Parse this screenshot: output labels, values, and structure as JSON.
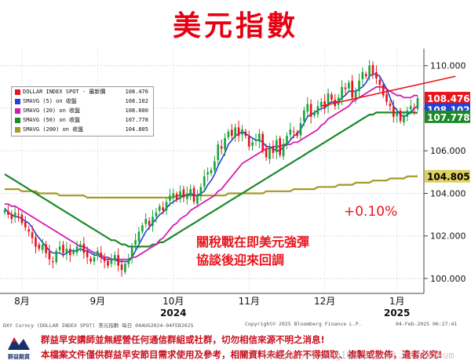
{
  "page": {
    "title": "美元指數",
    "disclaimer_1": "群益早安講師並無經營任何通信群組或社群，切勿相信來源不明之消息!",
    "disclaimer_2": "本檔案文件僅供群益早安節目需求使用及參考，相關資料未經允許不得擷取、複製或散佈，違者必究!",
    "watermark": "https://eting168.pixnet.net/album",
    "logo_text": "群益期貨",
    "footer_left": "DXY Curncy (DOLLAR INDEX SPOT) 美元指數  每日 04AUG2024-04FEB2025",
    "footer_center": "Copyright© 2025 Bloomberg Finance L.P.",
    "footer_right": "04-Feb-2025 06:27:41"
  },
  "legend": [
    {
      "label": "DOLLAR INDEX SPOT - 最新價",
      "value": "108.476",
      "color": "#e8141c"
    },
    {
      "label": "SMAVG (5)  on 收盤",
      "value": "108.102",
      "color": "#2440d8"
    },
    {
      "label": "SMAVG (20)  on 收盤",
      "value": "108.600",
      "color": "#d61bb0"
    },
    {
      "label": "SMAVG (50)  on 收盤",
      "value": "107.778",
      "color": "#1d8a2a"
    },
    {
      "label": "SMAVG (200)  on 收盤",
      "value": "104.805",
      "color": "#a39a22"
    }
  ],
  "chart_data": {
    "type": "candlestick",
    "y_ticks": [
      "110.000",
      "108.000",
      "106.000",
      "104.000",
      "102.000",
      "100.000"
    ],
    "ylim": [
      99.3,
      110.8
    ],
    "x_labels": [
      "8月",
      "9月",
      "10月",
      "11月",
      "12月",
      "1月"
    ],
    "year_labels": [
      "2024",
      "2025"
    ],
    "last_price_label": "108.476",
    "price_tags": [
      {
        "value": "108.476",
        "y": 108.476,
        "color": "#e8141c",
        "text_color": "#ffffff"
      },
      {
        "value": "108.102",
        "y": 107.95,
        "color": "#2440d8",
        "text_color": "#ffffff"
      },
      {
        "value": "107.778",
        "y": 107.6,
        "color": "#1d8a2a",
        "text_color": "#ffffff"
      },
      {
        "value": "104.805",
        "y": 104.805,
        "color": "#e0d060",
        "text_color": "#000000"
      }
    ],
    "annotation_pct": "+0.10%",
    "annotation_text_1": "關稅戰在即美元強彈",
    "annotation_text_2": "協談後迎來回調",
    "trendline": {
      "start": {
        "x": 92,
        "y": 108.1
      },
      "end": {
        "x": 131,
        "y": 109.5
      }
    },
    "series": {
      "close": [
        103.2,
        103.0,
        102.8,
        103.1,
        103.0,
        102.6,
        102.4,
        102.2,
        101.9,
        101.5,
        101.4,
        101.6,
        101.2,
        100.9,
        100.8,
        101.3,
        101.5,
        101.2,
        101.4,
        101.1,
        101.3,
        101.5,
        101.6,
        101.2,
        101.0,
        100.8,
        101.0,
        101.3,
        101.0,
        100.8,
        100.6,
        100.9,
        101.1,
        100.6,
        100.4,
        100.7,
        100.9,
        101.5,
        101.8,
        102.2,
        102.5,
        102.8,
        102.5,
        102.9,
        103.1,
        103.4,
        103.2,
        103.6,
        103.9,
        104.0,
        103.7,
        104.1,
        103.8,
        104.0,
        104.2,
        103.6,
        103.9,
        104.3,
        104.8,
        105.0,
        105.1,
        105.5,
        106.3,
        106.1,
        106.6,
        106.9,
        106.7,
        107.1,
        106.7,
        107.0,
        106.7,
        106.2,
        106.4,
        106.5,
        106.8,
        106.0,
        105.7,
        106.2,
        105.9,
        106.5,
        105.8,
        106.3,
        106.7,
        107.0,
        106.9,
        106.7,
        107.3,
        107.9,
        108.2,
        107.6,
        107.8,
        108.1,
        108.3,
        108.0,
        108.7,
        108.4,
        108.1,
        108.5,
        109.0,
        108.9,
        109.2,
        108.5,
        108.8,
        109.3,
        109.7,
        109.5,
        110.0,
        109.6,
        109.4,
        109.1,
        108.6,
        108.3,
        108.1,
        107.6,
        107.8,
        107.4,
        107.6,
        107.9,
        108.1,
        108.0,
        108.476
      ],
      "sma5": [
        103.3,
        103.1,
        103.0,
        102.9,
        102.9,
        102.8,
        102.7,
        102.6,
        102.4,
        102.1,
        101.9,
        101.7,
        101.5,
        101.3,
        101.2,
        101.2,
        101.2,
        101.1,
        101.2,
        101.3,
        101.3,
        101.3,
        101.4,
        101.3,
        101.3,
        101.2,
        101.1,
        101.1,
        101.0,
        100.9,
        100.9,
        100.9,
        100.9,
        100.8,
        100.8,
        100.8,
        100.8,
        101.0,
        101.3,
        101.6,
        101.9,
        102.2,
        102.4,
        102.6,
        102.8,
        103.0,
        103.1,
        103.3,
        103.5,
        103.6,
        103.7,
        103.8,
        103.9,
        103.9,
        104.0,
        103.9,
        103.9,
        104.0,
        104.1,
        104.4,
        104.6,
        104.9,
        105.3,
        105.6,
        105.9,
        106.3,
        106.5,
        106.7,
        106.8,
        106.9,
        106.8,
        106.7,
        106.6,
        106.5,
        106.5,
        106.4,
        106.2,
        106.2,
        106.1,
        106.0,
        106.0,
        106.2,
        106.3,
        106.5,
        106.7,
        106.8,
        107.0,
        107.3,
        107.6,
        107.7,
        107.8,
        107.9,
        108.0,
        108.0,
        108.2,
        108.3,
        108.3,
        108.3,
        108.5,
        108.6,
        108.8,
        108.8,
        108.8,
        108.9,
        109.0,
        109.2,
        109.5,
        109.6,
        109.6,
        109.5,
        109.2,
        108.9,
        108.5,
        108.1,
        107.9,
        107.7,
        107.6,
        107.7,
        107.8,
        108.0,
        108.102
      ],
      "sma20": [
        103.5,
        103.5,
        103.4,
        103.4,
        103.3,
        103.2,
        103.1,
        103.0,
        102.9,
        102.8,
        102.7,
        102.6,
        102.5,
        102.4,
        102.3,
        102.2,
        102.1,
        102.0,
        101.9,
        101.8,
        101.7,
        101.6,
        101.5,
        101.5,
        101.4,
        101.3,
        101.2,
        101.2,
        101.1,
        101.0,
        101.0,
        100.9,
        100.9,
        100.9,
        100.9,
        100.9,
        100.9,
        101.0,
        101.0,
        101.1,
        101.2,
        101.3,
        101.4,
        101.5,
        101.6,
        101.8,
        101.9,
        102.1,
        102.3,
        102.5,
        102.6,
        102.8,
        102.9,
        103.0,
        103.2,
        103.3,
        103.4,
        103.5,
        103.6,
        103.7,
        103.8,
        103.9,
        104.1,
        104.2,
        104.4,
        104.6,
        104.8,
        105.0,
        105.2,
        105.4,
        105.5,
        105.6,
        105.7,
        105.8,
        105.9,
        106.0,
        106.1,
        106.1,
        106.2,
        106.2,
        106.2,
        106.3,
        106.3,
        106.3,
        106.4,
        106.4,
        106.5,
        106.6,
        106.7,
        106.8,
        106.9,
        107.0,
        107.2,
        107.3,
        107.5,
        107.6,
        107.7,
        107.8,
        107.9,
        108.0,
        108.1,
        108.3,
        108.4,
        108.5,
        108.6,
        108.7,
        108.8,
        108.9,
        109.0,
        109.0,
        109.0,
        108.9,
        108.8,
        108.7,
        108.6,
        108.6,
        108.5,
        108.5,
        108.5,
        108.6,
        108.6
      ],
      "sma50": [
        104.9,
        104.8,
        104.7,
        104.6,
        104.5,
        104.4,
        104.3,
        104.2,
        104.1,
        104.0,
        103.9,
        103.8,
        103.7,
        103.6,
        103.5,
        103.4,
        103.3,
        103.2,
        103.1,
        103.0,
        102.9,
        102.8,
        102.7,
        102.6,
        102.5,
        102.4,
        102.3,
        102.2,
        102.1,
        102.0,
        101.9,
        101.8,
        101.8,
        101.7,
        101.6,
        101.6,
        101.5,
        101.5,
        101.5,
        101.5,
        101.5,
        101.5,
        101.5,
        101.6,
        101.6,
        101.7,
        101.7,
        101.8,
        101.9,
        102.0,
        102.1,
        102.2,
        102.3,
        102.4,
        102.5,
        102.6,
        102.7,
        102.8,
        102.9,
        103.0,
        103.1,
        103.2,
        103.3,
        103.4,
        103.5,
        103.6,
        103.7,
        103.8,
        103.9,
        104.0,
        104.1,
        104.2,
        104.3,
        104.4,
        104.5,
        104.6,
        104.7,
        104.8,
        104.9,
        105.0,
        105.1,
        105.2,
        105.3,
        105.4,
        105.5,
        105.6,
        105.7,
        105.8,
        105.9,
        106.0,
        106.1,
        106.2,
        106.3,
        106.4,
        106.5,
        106.6,
        106.7,
        106.8,
        106.9,
        107.0,
        107.1,
        107.2,
        107.3,
        107.4,
        107.5,
        107.6,
        107.7,
        107.7,
        107.8,
        107.8,
        107.8,
        107.8,
        107.8,
        107.8,
        107.8,
        107.8,
        107.8,
        107.8,
        107.8,
        107.8,
        107.778
      ],
      "sma200": [
        104.2,
        104.2,
        104.2,
        104.2,
        104.2,
        104.1,
        104.1,
        104.1,
        104.1,
        104.1,
        104.0,
        104.0,
        104.0,
        104.0,
        104.0,
        104.0,
        103.9,
        103.9,
        103.9,
        103.9,
        103.9,
        103.9,
        103.9,
        103.9,
        103.8,
        103.8,
        103.8,
        103.8,
        103.8,
        103.8,
        103.8,
        103.8,
        103.8,
        103.8,
        103.8,
        103.8,
        103.8,
        103.8,
        103.8,
        103.8,
        103.8,
        103.8,
        103.8,
        103.8,
        103.8,
        103.8,
        103.8,
        103.8,
        103.8,
        103.8,
        103.9,
        103.9,
        103.9,
        103.9,
        103.9,
        103.9,
        103.9,
        103.9,
        103.9,
        103.9,
        103.9,
        103.9,
        103.9,
        103.9,
        103.9,
        104.0,
        104.0,
        104.0,
        104.0,
        104.0,
        104.0,
        104.0,
        104.0,
        104.0,
        104.0,
        104.0,
        104.1,
        104.1,
        104.1,
        104.1,
        104.1,
        104.1,
        104.1,
        104.1,
        104.2,
        104.2,
        104.2,
        104.2,
        104.2,
        104.2,
        104.2,
        104.3,
        104.3,
        104.3,
        104.3,
        104.3,
        104.3,
        104.4,
        104.4,
        104.4,
        104.4,
        104.4,
        104.5,
        104.5,
        104.5,
        104.5,
        104.5,
        104.6,
        104.6,
        104.6,
        104.6,
        104.6,
        104.7,
        104.7,
        104.7,
        104.7,
        104.7,
        104.8,
        104.8,
        104.8,
        104.805
      ]
    }
  }
}
